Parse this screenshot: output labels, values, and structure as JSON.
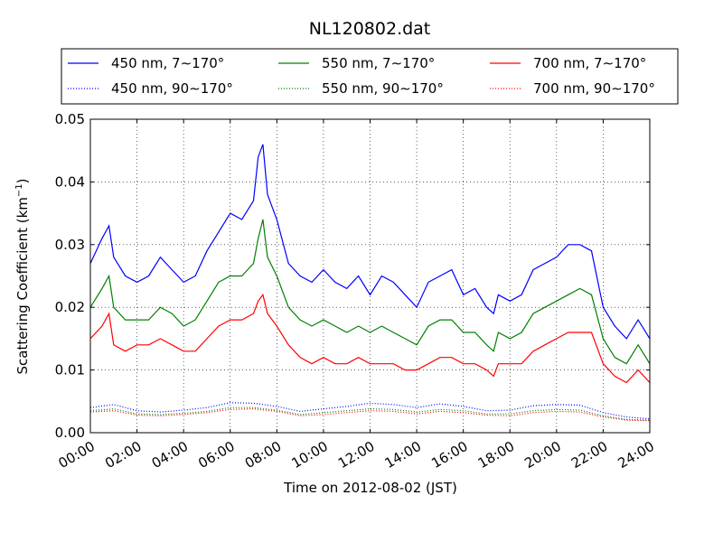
{
  "chart_data": {
    "type": "line",
    "title": "NL120802.dat",
    "xlabel": "Time on 2012-08-02 (JST)",
    "ylabel": "Scattering Coefficient (km",
    "ylabel_sup": "−1",
    "ylabel_close": ")",
    "xlim": [
      0,
      24
    ],
    "ylim": [
      0,
      0.05
    ],
    "x_ticks": [
      0,
      2,
      4,
      6,
      8,
      10,
      12,
      14,
      16,
      18,
      20,
      22,
      24
    ],
    "x_tick_labels": [
      "00:00",
      "02:00",
      "04:00",
      "06:00",
      "08:00",
      "10:00",
      "12:00",
      "14:00",
      "16:00",
      "18:00",
      "20:00",
      "22:00",
      "24:00"
    ],
    "y_ticks": [
      0,
      0.01,
      0.02,
      0.03,
      0.04,
      0.05
    ],
    "y_tick_labels": [
      "0.00",
      "0.01",
      "0.02",
      "0.03",
      "0.04",
      "0.05"
    ],
    "grid": true,
    "legend_position": "top",
    "series": [
      {
        "name": "450 nm, 7∼170°",
        "color": "#0000ff",
        "style": "solid",
        "x": [
          0,
          0.5,
          0.8,
          1,
          1.5,
          2,
          2.5,
          3,
          3.5,
          4,
          4.5,
          5,
          5.5,
          6,
          6.5,
          7,
          7.2,
          7.4,
          7.6,
          8,
          8.5,
          9,
          9.5,
          10,
          10.5,
          11,
          11.5,
          12,
          12.5,
          13,
          13.5,
          14,
          14.5,
          15,
          15.5,
          16,
          16.5,
          17,
          17.3,
          17.5,
          18,
          18.5,
          19,
          19.5,
          20,
          20.5,
          21,
          21.5,
          22,
          22.5,
          23,
          23.5,
          24
        ],
        "y": [
          0.027,
          0.031,
          0.033,
          0.028,
          0.025,
          0.024,
          0.025,
          0.028,
          0.026,
          0.024,
          0.025,
          0.029,
          0.032,
          0.035,
          0.034,
          0.037,
          0.044,
          0.046,
          0.038,
          0.034,
          0.027,
          0.025,
          0.024,
          0.026,
          0.024,
          0.023,
          0.025,
          0.022,
          0.025,
          0.024,
          0.022,
          0.02,
          0.024,
          0.025,
          0.026,
          0.022,
          0.023,
          0.02,
          0.019,
          0.022,
          0.021,
          0.022,
          0.026,
          0.027,
          0.028,
          0.03,
          0.03,
          0.029,
          0.02,
          0.017,
          0.015,
          0.018,
          0.015
        ]
      },
      {
        "name": "450 nm, 90∼170°",
        "color": "#0000ff",
        "style": "dotted",
        "x": [
          0,
          1,
          2,
          3,
          4,
          5,
          6,
          7,
          8,
          9,
          10,
          11,
          12,
          13,
          14,
          15,
          16,
          17,
          18,
          19,
          20,
          21,
          22,
          23,
          24
        ],
        "y": [
          0.004,
          0.0045,
          0.0035,
          0.0033,
          0.0036,
          0.004,
          0.0048,
          0.0047,
          0.0042,
          0.0034,
          0.0038,
          0.0042,
          0.0047,
          0.0045,
          0.004,
          0.0046,
          0.0042,
          0.0035,
          0.0036,
          0.0043,
          0.0045,
          0.0044,
          0.0032,
          0.0025,
          0.0022
        ]
      },
      {
        "name": "550 nm, 7∼170°",
        "color": "#008000",
        "style": "solid",
        "x": [
          0,
          0.5,
          0.8,
          1,
          1.5,
          2,
          2.5,
          3,
          3.5,
          4,
          4.5,
          5,
          5.5,
          6,
          6.5,
          7,
          7.2,
          7.4,
          7.6,
          8,
          8.5,
          9,
          9.5,
          10,
          10.5,
          11,
          11.5,
          12,
          12.5,
          13,
          13.5,
          14,
          14.5,
          15,
          15.5,
          16,
          16.5,
          17,
          17.3,
          17.5,
          18,
          18.5,
          19,
          19.5,
          20,
          20.5,
          21,
          21.5,
          22,
          22.5,
          23,
          23.5,
          24
        ],
        "y": [
          0.02,
          0.023,
          0.025,
          0.02,
          0.018,
          0.018,
          0.018,
          0.02,
          0.019,
          0.017,
          0.018,
          0.021,
          0.024,
          0.025,
          0.025,
          0.027,
          0.031,
          0.034,
          0.028,
          0.025,
          0.02,
          0.018,
          0.017,
          0.018,
          0.017,
          0.016,
          0.017,
          0.016,
          0.017,
          0.016,
          0.015,
          0.014,
          0.017,
          0.018,
          0.018,
          0.016,
          0.016,
          0.014,
          0.013,
          0.016,
          0.015,
          0.016,
          0.019,
          0.02,
          0.021,
          0.022,
          0.023,
          0.022,
          0.015,
          0.012,
          0.011,
          0.014,
          0.011
        ]
      },
      {
        "name": "550 nm, 90∼170°",
        "color": "#008000",
        "style": "dotted",
        "x": [
          0,
          1,
          2,
          3,
          4,
          5,
          6,
          7,
          8,
          9,
          10,
          11,
          12,
          13,
          14,
          15,
          16,
          17,
          18,
          19,
          20,
          21,
          22,
          23,
          24
        ],
        "y": [
          0.0035,
          0.0038,
          0.003,
          0.0029,
          0.0031,
          0.0034,
          0.004,
          0.004,
          0.0036,
          0.0029,
          0.0032,
          0.0035,
          0.0038,
          0.0037,
          0.0033,
          0.0037,
          0.0035,
          0.003,
          0.003,
          0.0035,
          0.0037,
          0.0036,
          0.0027,
          0.0021,
          0.002
        ]
      },
      {
        "name": "700 nm, 7∼170°",
        "color": "#ff0000",
        "style": "solid",
        "x": [
          0,
          0.5,
          0.8,
          1,
          1.5,
          2,
          2.5,
          3,
          3.5,
          4,
          4.5,
          5,
          5.5,
          6,
          6.5,
          7,
          7.2,
          7.4,
          7.6,
          8,
          8.5,
          9,
          9.5,
          10,
          10.5,
          11,
          11.5,
          12,
          12.5,
          13,
          13.5,
          14,
          14.5,
          15,
          15.5,
          16,
          16.5,
          17,
          17.3,
          17.5,
          18,
          18.5,
          19,
          19.5,
          20,
          20.5,
          21,
          21.5,
          22,
          22.5,
          23,
          23.5,
          24
        ],
        "y": [
          0.015,
          0.017,
          0.019,
          0.014,
          0.013,
          0.014,
          0.014,
          0.015,
          0.014,
          0.013,
          0.013,
          0.015,
          0.017,
          0.018,
          0.018,
          0.019,
          0.021,
          0.022,
          0.019,
          0.017,
          0.014,
          0.012,
          0.011,
          0.012,
          0.011,
          0.011,
          0.012,
          0.011,
          0.011,
          0.011,
          0.01,
          0.01,
          0.011,
          0.012,
          0.012,
          0.011,
          0.011,
          0.01,
          0.009,
          0.011,
          0.011,
          0.011,
          0.013,
          0.014,
          0.015,
          0.016,
          0.016,
          0.016,
          0.011,
          0.009,
          0.008,
          0.01,
          0.008
        ]
      },
      {
        "name": "700 nm, 90∼170°",
        "color": "#ff0000",
        "style": "dotted",
        "x": [
          0,
          1,
          2,
          3,
          4,
          5,
          6,
          7,
          8,
          9,
          10,
          11,
          12,
          13,
          14,
          15,
          16,
          17,
          18,
          19,
          20,
          21,
          22,
          23,
          24
        ],
        "y": [
          0.0033,
          0.0035,
          0.0028,
          0.0027,
          0.0029,
          0.0032,
          0.0037,
          0.0038,
          0.0034,
          0.0027,
          0.0029,
          0.0032,
          0.0035,
          0.0034,
          0.003,
          0.0034,
          0.0032,
          0.0028,
          0.0027,
          0.0032,
          0.0034,
          0.0033,
          0.0025,
          0.002,
          0.0019
        ]
      }
    ]
  }
}
